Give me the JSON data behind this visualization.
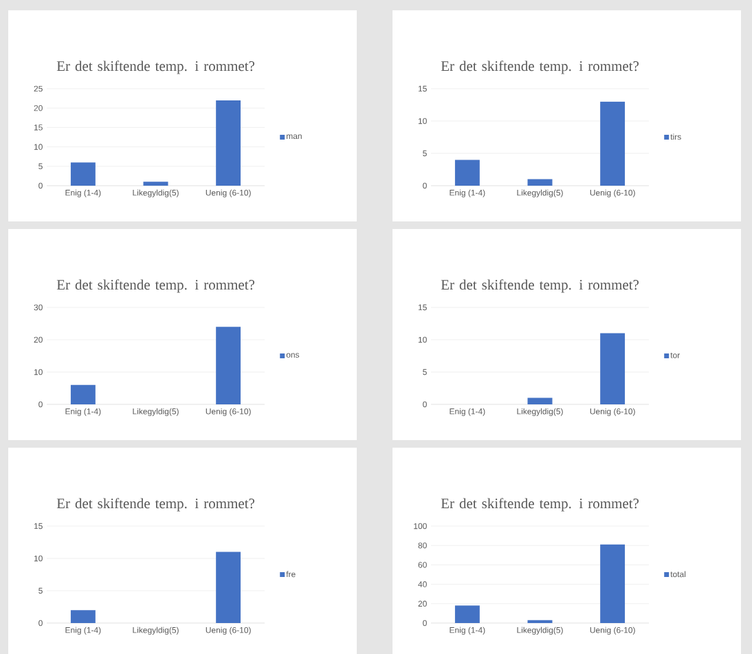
{
  "chart_data": [
    {
      "type": "bar",
      "title": "Er det skiftende temp. i rommet?",
      "categories": [
        "Enig (1-4)",
        "Likegyldig(5)",
        "Uenig (6-10)"
      ],
      "series": [
        {
          "name": "man",
          "color": "#4472c4",
          "values": [
            6,
            1,
            22
          ]
        }
      ],
      "ylim": [
        0,
        25
      ],
      "yticks": [
        0,
        5,
        10,
        15,
        20,
        25
      ],
      "grid": "y",
      "legend": "right"
    },
    {
      "type": "bar",
      "title": "Er det skiftende temp. i rommet?",
      "categories": [
        "Enig (1-4)",
        "Likegyldig(5)",
        "Uenig (6-10)"
      ],
      "series": [
        {
          "name": "tirs",
          "color": "#4472c4",
          "values": [
            4,
            1,
            13
          ]
        }
      ],
      "ylim": [
        0,
        15
      ],
      "yticks": [
        0,
        5,
        10,
        15
      ],
      "grid": "y",
      "legend": "right"
    },
    {
      "type": "bar",
      "title": "Er det skiftende temp. i rommet?",
      "categories": [
        "Enig (1-4)",
        "Likegyldig(5)",
        "Uenig (6-10)"
      ],
      "series": [
        {
          "name": "ons",
          "color": "#4472c4",
          "values": [
            6,
            0,
            24
          ]
        }
      ],
      "ylim": [
        0,
        30
      ],
      "yticks": [
        0,
        10,
        20,
        30
      ],
      "grid": "y",
      "legend": "right"
    },
    {
      "type": "bar",
      "title": "Er det skiftende temp. i rommet?",
      "categories": [
        "Enig (1-4)",
        "Likegyldig(5)",
        "Uenig (6-10)"
      ],
      "series": [
        {
          "name": "tor",
          "color": "#4472c4",
          "values": [
            0,
            1,
            11
          ]
        }
      ],
      "ylim": [
        0,
        15
      ],
      "yticks": [
        0,
        5,
        10,
        15
      ],
      "grid": "y",
      "legend": "right"
    },
    {
      "type": "bar",
      "title": "Er det skiftende temp. i rommet?",
      "categories": [
        "Enig (1-4)",
        "Likegyldig(5)",
        "Uenig (6-10)"
      ],
      "series": [
        {
          "name": "fre",
          "color": "#4472c4",
          "values": [
            2,
            0,
            11
          ]
        }
      ],
      "ylim": [
        0,
        15
      ],
      "yticks": [
        0,
        5,
        10,
        15
      ],
      "grid": "y",
      "legend": "right"
    },
    {
      "type": "bar",
      "title": "Er det skiftende temp. i rommet?",
      "categories": [
        "Enig (1-4)",
        "Likegyldig(5)",
        "Uenig (6-10)"
      ],
      "series": [
        {
          "name": "total",
          "color": "#4472c4",
          "values": [
            18,
            3,
            81
          ]
        }
      ],
      "ylim": [
        0,
        100
      ],
      "yticks": [
        0,
        20,
        40,
        60,
        80,
        100
      ],
      "grid": "y",
      "legend": "right"
    }
  ]
}
